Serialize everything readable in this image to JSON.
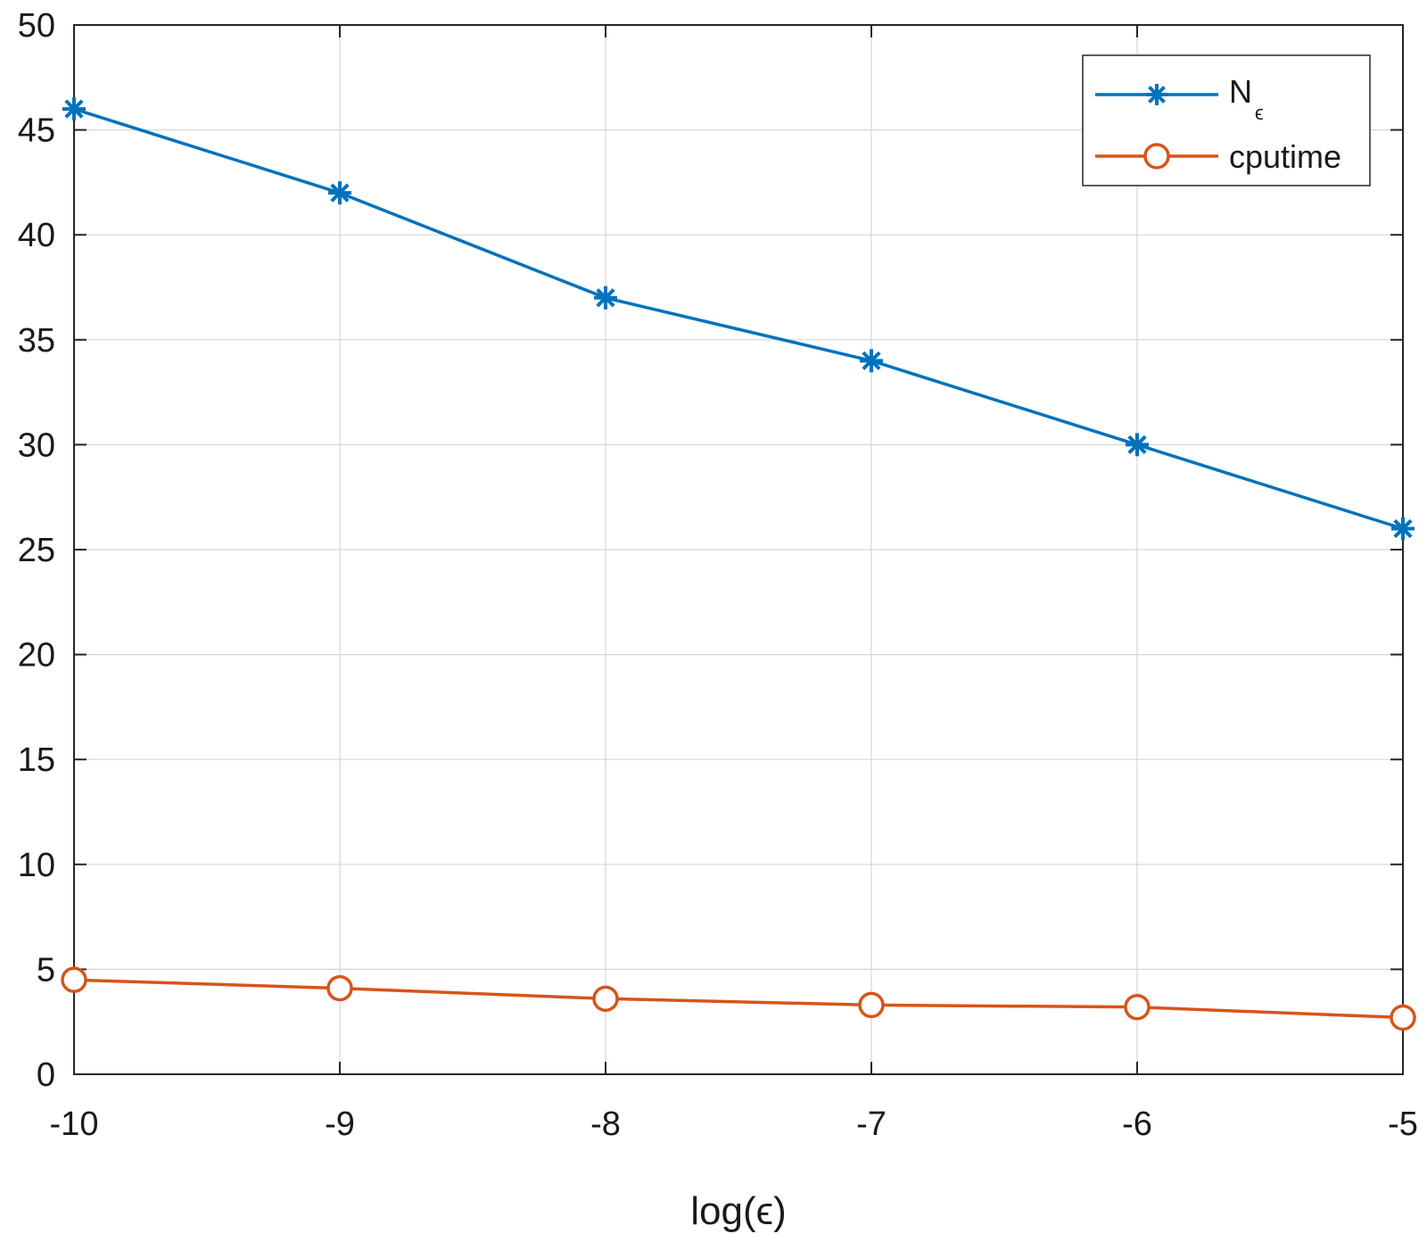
{
  "chart_data": {
    "type": "line",
    "title": "",
    "xlabel": "log(ϵ)",
    "ylabel": "",
    "x": [
      -10,
      -9,
      -8,
      -7,
      -6,
      -5
    ],
    "xlim": [
      -10,
      -5
    ],
    "ylim": [
      0,
      50
    ],
    "xticks": [
      "-10",
      "-9",
      "-8",
      "-7",
      "-6",
      "-5"
    ],
    "yticks": [
      "0",
      "5",
      "10",
      "15",
      "20",
      "25",
      "30",
      "35",
      "40",
      "45",
      "50"
    ],
    "grid": true,
    "legend_position": "top-right",
    "series": [
      {
        "name": "N",
        "name_subscript": "ϵ",
        "marker": "asterisk",
        "color": "#0072BD",
        "values": [
          46,
          42,
          37,
          34,
          30,
          26
        ]
      },
      {
        "name": "cputime",
        "marker": "circle",
        "color": "#D95319",
        "values": [
          4.5,
          4.1,
          3.6,
          3.3,
          3.2,
          2.7
        ]
      }
    ]
  }
}
